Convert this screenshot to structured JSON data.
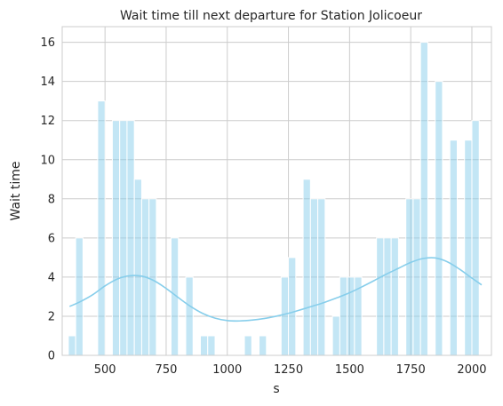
{
  "chart_data": {
    "type": "bar",
    "title": "Wait time till next departure for Station Jolicoeur",
    "xlabel": "s",
    "ylabel": "Wait time",
    "xlim": [
      325,
      2080
    ],
    "ylim": [
      0,
      16.8
    ],
    "xticks": [
      500,
      750,
      1000,
      1250,
      1500,
      1750,
      2000
    ],
    "yticks": [
      0,
      2,
      4,
      6,
      8,
      10,
      12,
      14,
      16
    ],
    "grid": true,
    "bar_width": 30,
    "bars": [
      {
        "x": 365,
        "value": 1
      },
      {
        "x": 395,
        "value": 6
      },
      {
        "x": 485,
        "value": 13
      },
      {
        "x": 545,
        "value": 12
      },
      {
        "x": 575,
        "value": 12
      },
      {
        "x": 605,
        "value": 12
      },
      {
        "x": 635,
        "value": 9
      },
      {
        "x": 665,
        "value": 8
      },
      {
        "x": 695,
        "value": 8
      },
      {
        "x": 785,
        "value": 6
      },
      {
        "x": 845,
        "value": 4
      },
      {
        "x": 905,
        "value": 1
      },
      {
        "x": 935,
        "value": 1
      },
      {
        "x": 1085,
        "value": 1
      },
      {
        "x": 1145,
        "value": 1
      },
      {
        "x": 1235,
        "value": 4
      },
      {
        "x": 1265,
        "value": 5
      },
      {
        "x": 1325,
        "value": 9
      },
      {
        "x": 1355,
        "value": 8
      },
      {
        "x": 1385,
        "value": 8
      },
      {
        "x": 1445,
        "value": 2
      },
      {
        "x": 1475,
        "value": 4
      },
      {
        "x": 1505,
        "value": 4
      },
      {
        "x": 1535,
        "value": 4
      },
      {
        "x": 1625,
        "value": 6
      },
      {
        "x": 1655,
        "value": 6
      },
      {
        "x": 1685,
        "value": 6
      },
      {
        "x": 1745,
        "value": 8
      },
      {
        "x": 1775,
        "value": 8
      },
      {
        "x": 1805,
        "value": 16
      },
      {
        "x": 1865,
        "value": 14
      },
      {
        "x": 1925,
        "value": 11
      },
      {
        "x": 1985,
        "value": 11
      },
      {
        "x": 2015,
        "value": 12
      }
    ],
    "kde_curve": {
      "x": [
        355,
        400,
        450,
        500,
        550,
        600,
        650,
        700,
        750,
        800,
        850,
        900,
        950,
        1000,
        1050,
        1100,
        1150,
        1200,
        1250,
        1300,
        1350,
        1400,
        1450,
        1500,
        1550,
        1600,
        1650,
        1700,
        1750,
        1800,
        1850,
        1900,
        1950,
        2000,
        2040
      ],
      "y": [
        2.5,
        2.75,
        3.1,
        3.55,
        3.9,
        4.07,
        4.05,
        3.82,
        3.42,
        2.95,
        2.5,
        2.14,
        1.9,
        1.78,
        1.76,
        1.8,
        1.88,
        2.0,
        2.15,
        2.33,
        2.52,
        2.72,
        2.95,
        3.2,
        3.5,
        3.82,
        4.15,
        4.45,
        4.75,
        4.95,
        4.98,
        4.78,
        4.4,
        3.95,
        3.6
      ]
    },
    "colors": {
      "bar_fill": "#87ceeb",
      "bar_opacity": 0.5,
      "kde_line": "#87ceeb",
      "grid": "#cccccc",
      "text": "#262626"
    }
  }
}
